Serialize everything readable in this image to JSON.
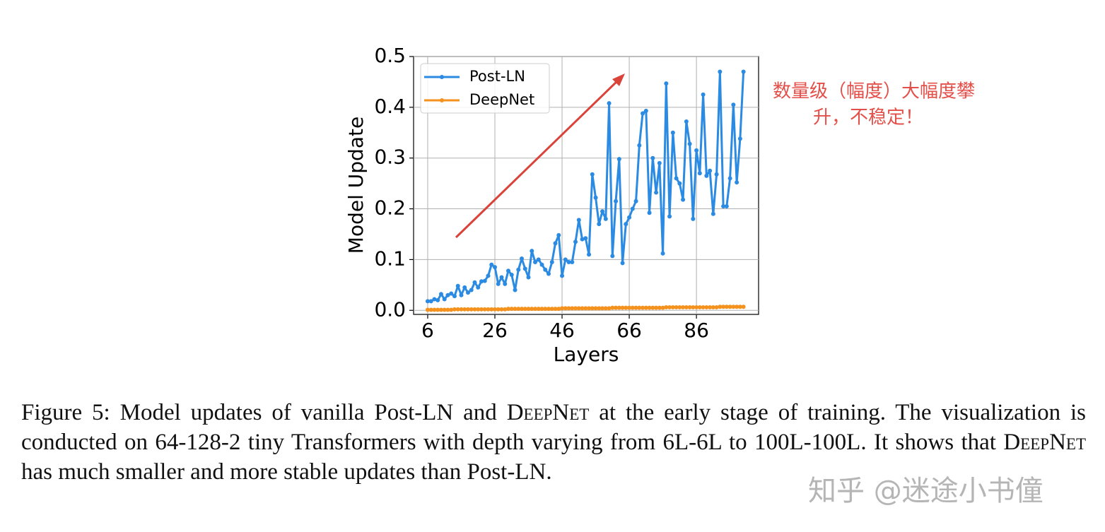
{
  "chart_data": {
    "type": "line",
    "xlabel": "Layers",
    "ylabel": "Model Update",
    "x": [
      6,
      7,
      8,
      9,
      10,
      11,
      12,
      13,
      14,
      15,
      16,
      17,
      18,
      19,
      20,
      21,
      22,
      23,
      24,
      25,
      26,
      27,
      28,
      29,
      30,
      31,
      32,
      33,
      34,
      35,
      36,
      37,
      38,
      39,
      40,
      41,
      42,
      43,
      44,
      45,
      46,
      47,
      48,
      49,
      50,
      51,
      52,
      53,
      54,
      55,
      56,
      57,
      58,
      59,
      60,
      61,
      62,
      63,
      64,
      65,
      66,
      67,
      68,
      69,
      70,
      71,
      72,
      73,
      74,
      75,
      76,
      77,
      78,
      79,
      80,
      81,
      82,
      83,
      84,
      85,
      86,
      87,
      88,
      89,
      90,
      91,
      92,
      93,
      94,
      95,
      96,
      97,
      98,
      99,
      100
    ],
    "series": [
      {
        "name": "Post-LN",
        "color": "#2b8ae2",
        "values": [
          0.018,
          0.018,
          0.022,
          0.02,
          0.032,
          0.022,
          0.03,
          0.033,
          0.028,
          0.048,
          0.03,
          0.045,
          0.035,
          0.04,
          0.055,
          0.045,
          0.057,
          0.058,
          0.068,
          0.09,
          0.085,
          0.052,
          0.065,
          0.052,
          0.078,
          0.07,
          0.04,
          0.08,
          0.102,
          0.082,
          0.065,
          0.117,
          0.095,
          0.1,
          0.09,
          0.08,
          0.072,
          0.095,
          0.132,
          0.148,
          0.068,
          0.1,
          0.095,
          0.095,
          0.135,
          0.178,
          0.14,
          0.142,
          0.11,
          0.268,
          0.222,
          0.17,
          0.195,
          0.18,
          0.408,
          0.107,
          0.215,
          0.298,
          0.093,
          0.17,
          0.183,
          0.2,
          0.215,
          0.325,
          0.388,
          0.393,
          0.192,
          0.3,
          0.232,
          0.29,
          0.112,
          0.447,
          0.185,
          0.35,
          0.26,
          0.25,
          0.218,
          0.372,
          0.328,
          0.18,
          0.315,
          0.27,
          0.425,
          0.265,
          0.275,
          0.19,
          0.268,
          0.47,
          0.205,
          0.205,
          0.26,
          0.405,
          0.252,
          0.338,
          0.47
        ]
      },
      {
        "name": "DeepNet",
        "color": "#f5921e",
        "values": [
          0.001,
          0.001,
          0.001,
          0.001,
          0.001,
          0.001,
          0.001,
          0.001,
          0.002,
          0.002,
          0.002,
          0.002,
          0.002,
          0.002,
          0.002,
          0.002,
          0.002,
          0.002,
          0.002,
          0.002,
          0.002,
          0.002,
          0.002,
          0.002,
          0.003,
          0.003,
          0.003,
          0.003,
          0.003,
          0.003,
          0.003,
          0.003,
          0.003,
          0.003,
          0.003,
          0.003,
          0.003,
          0.003,
          0.003,
          0.003,
          0.004,
          0.004,
          0.004,
          0.004,
          0.004,
          0.004,
          0.004,
          0.004,
          0.004,
          0.004,
          0.004,
          0.004,
          0.004,
          0.004,
          0.004,
          0.005,
          0.005,
          0.005,
          0.005,
          0.005,
          0.005,
          0.005,
          0.005,
          0.005,
          0.005,
          0.005,
          0.005,
          0.005,
          0.005,
          0.005,
          0.005,
          0.006,
          0.006,
          0.006,
          0.006,
          0.006,
          0.006,
          0.006,
          0.006,
          0.006,
          0.006,
          0.006,
          0.006,
          0.006,
          0.006,
          0.006,
          0.006,
          0.007,
          0.007,
          0.007,
          0.007,
          0.007,
          0.007,
          0.007,
          0.007
        ]
      }
    ],
    "xlim": [
      1.8,
      104.5
    ],
    "ylim": [
      -0.008,
      0.5
    ],
    "xticks": [
      6,
      26,
      46,
      66,
      86
    ],
    "yticks": [
      {
        "value": 0,
        "label": "0.0"
      },
      0.1,
      0.2,
      0.3,
      0.4,
      0.5
    ],
    "grid": true,
    "legend": "upper left",
    "annotations": [
      "数量级（幅度）大幅度攀",
      "升，不稳定！"
    ]
  },
  "caption": {
    "parts": [
      "Figure 5: Model updates of vanilla Post-LN and ",
      "DeepNet",
      " at the early stage of training. The visualization is conducted on 64-128-2 tiny Transformers with depth varying from 6L-6L to 100L-100L. It shows that ",
      "DeepNet",
      " has much smaller and more stable updates than Post-LN."
    ]
  },
  "watermark": "知乎 @迷途小书僮"
}
